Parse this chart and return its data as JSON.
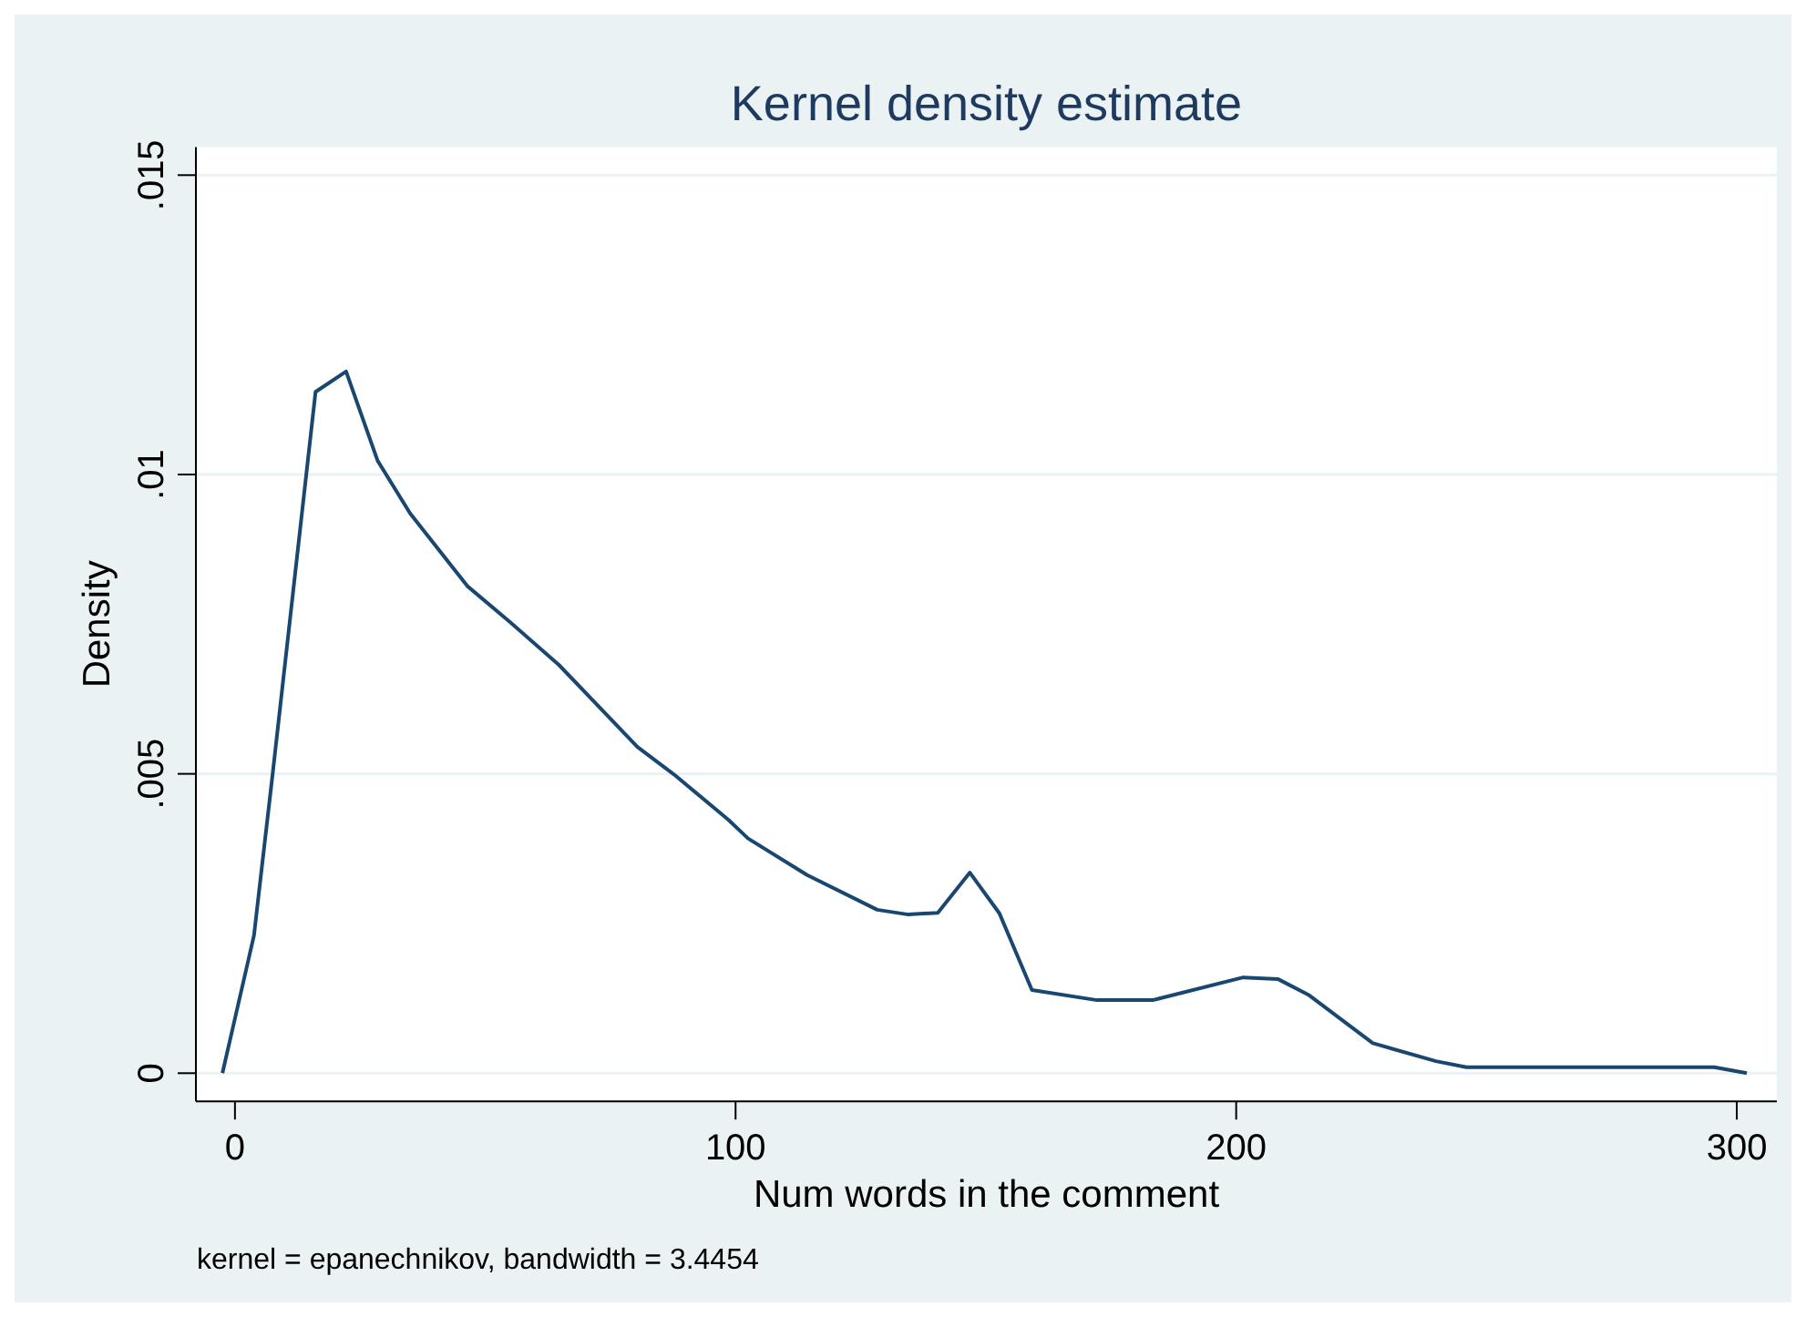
{
  "chart_data": {
    "type": "line",
    "title": "Kernel density estimate",
    "xlabel": "Num words in the comment",
    "ylabel": "Density",
    "annotations": [
      "kernel = epanechnikov, bandwidth = 3.4454"
    ],
    "xlim": [
      -7.8,
      308
    ],
    "ylim": [
      -0.00047,
      0.01547
    ],
    "xticks": [
      0,
      100,
      200,
      300
    ],
    "yticks": [
      {
        "value": 0,
        "label": "0"
      },
      {
        "value": 0.005,
        "label": ".005"
      },
      {
        "value": 0.01,
        "label": ".01"
      },
      {
        "value": 0.015,
        "label": ".015"
      }
    ],
    "grid": "y",
    "series": [
      {
        "color": "#1a476f",
        "x": [
          -2.5,
          3.8,
          7.6,
          16.1,
          22.2,
          28.5,
          35,
          46.5,
          55,
          64.7,
          80.4,
          87.7,
          98.6,
          102.5,
          114.3,
          128.3,
          134.5,
          140.4,
          146.8,
          152.7,
          159.2,
          172.2,
          183.3,
          201.4,
          208.4,
          214.6,
          227.3,
          239.9,
          246,
          264.9,
          295.5,
          302
        ],
        "values": [
          0,
          0.0023,
          0.00505,
          0.01138,
          0.01172,
          0.01023,
          0.00935,
          0.00813,
          0.00753,
          0.00682,
          0.00545,
          0.00499,
          0.00423,
          0.00392,
          0.00331,
          0.00273,
          0.00265,
          0.00268,
          0.00335,
          0.00267,
          0.00139,
          0.00122,
          0.00122,
          0.0016,
          0.00157,
          0.0013,
          0.0005,
          0.0002,
          0.0001,
          0.0001,
          0.0001,
          0
        ]
      }
    ]
  }
}
